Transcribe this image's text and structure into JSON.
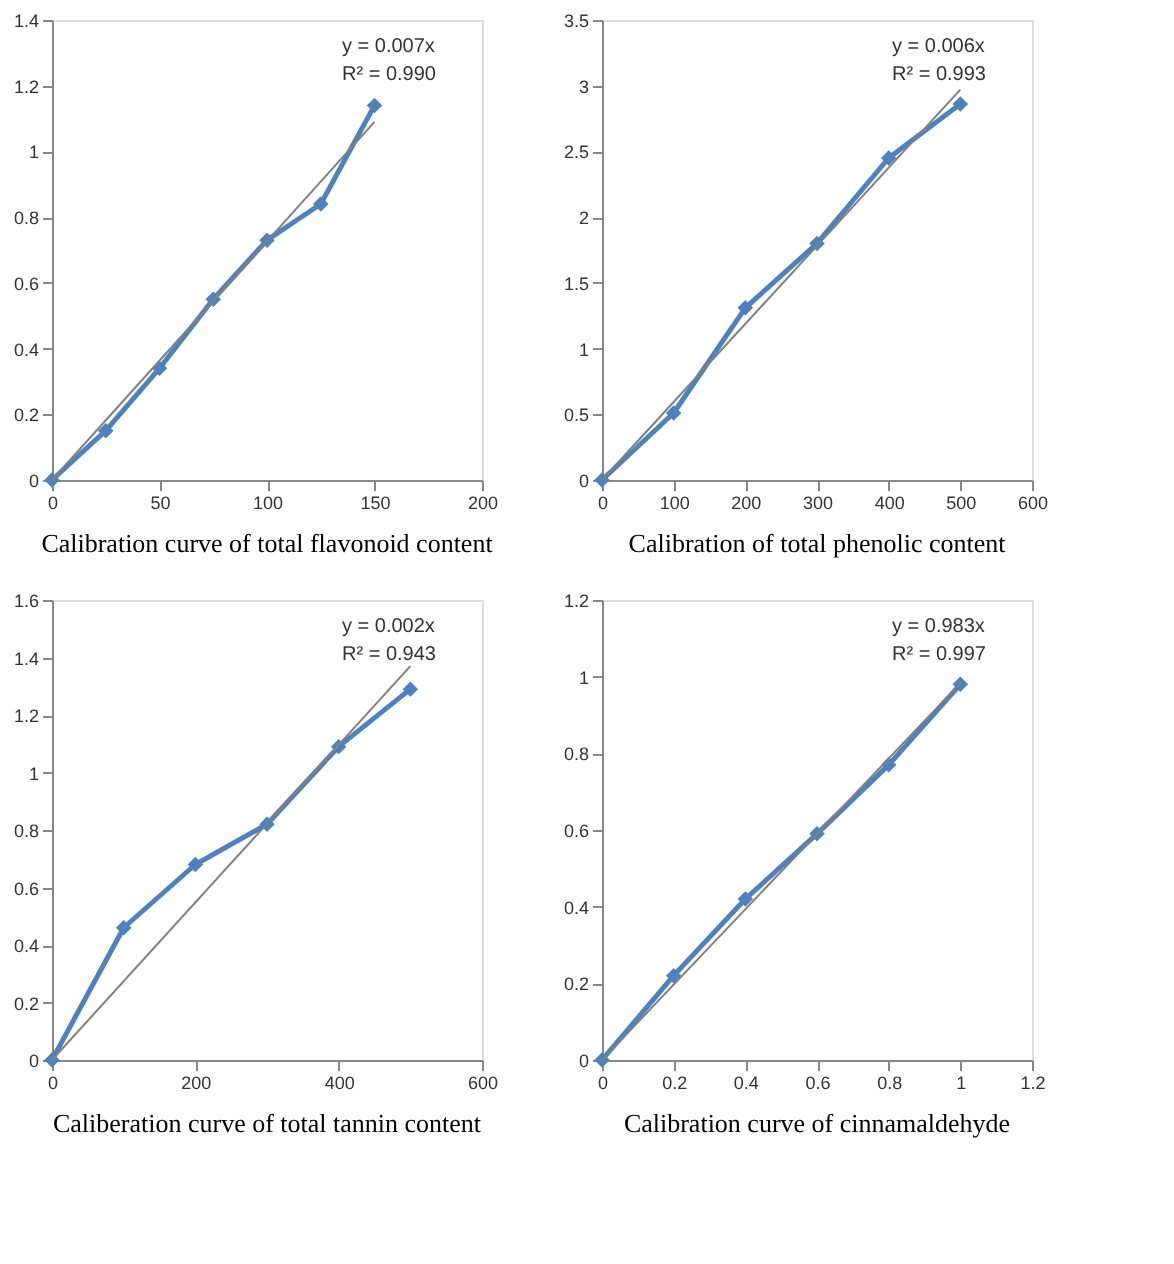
{
  "chart_data": [
    {
      "type": "line",
      "title": "Calibration curve of total flavonoid content",
      "annotations": [
        "y = 0.007x",
        "R² = 0.990"
      ],
      "marker": "diamond",
      "xlim": [
        0,
        200
      ],
      "xticks": [
        0,
        50,
        100,
        150,
        200
      ],
      "ylim": [
        0,
        1.4
      ],
      "yticks": [
        0,
        0.2,
        0.4,
        0.6,
        0.8,
        1,
        1.2,
        1.4
      ],
      "series": [
        {
          "color": "#4f81bd",
          "x": [
            0,
            25,
            50,
            75,
            100,
            125,
            150
          ],
          "values": [
            0,
            0.15,
            0.34,
            0.55,
            0.73,
            0.84,
            1.14
          ]
        },
        {
          "type": "line",
          "marker": "none",
          "color": "#808080",
          "x": [
            0,
            150
          ],
          "values": [
            0,
            1.09
          ]
        }
      ]
    },
    {
      "type": "line",
      "title": "Calibration of total phenolic content",
      "annotations": [
        "y = 0.006x",
        "R² = 0.993"
      ],
      "marker": "diamond",
      "xlim": [
        0,
        600
      ],
      "xticks": [
        0,
        100,
        200,
        300,
        400,
        500,
        600
      ],
      "ylim": [
        0,
        3.5
      ],
      "yticks": [
        0,
        0.5,
        1,
        1.5,
        2,
        2.5,
        3,
        3.5
      ],
      "series": [
        {
          "color": "#4f81bd",
          "x": [
            0,
            100,
            200,
            300,
            400,
            500
          ],
          "values": [
            0,
            0.51,
            1.31,
            1.8,
            2.45,
            2.86
          ]
        },
        {
          "type": "line",
          "marker": "none",
          "color": "#808080",
          "x": [
            0,
            500
          ],
          "values": [
            0,
            2.97
          ]
        }
      ]
    },
    {
      "type": "line",
      "title": "Caliberation curve of  total tannin content",
      "annotations": [
        "y = 0.002x",
        "R² = 0.943"
      ],
      "marker": "diamond",
      "xlim": [
        0,
        600
      ],
      "xticks": [
        0,
        200,
        400,
        600
      ],
      "ylim": [
        0,
        1.6
      ],
      "yticks": [
        0,
        0.2,
        0.4,
        0.6,
        0.8,
        1,
        1.2,
        1.4,
        1.6
      ],
      "series": [
        {
          "color": "#4f81bd",
          "x": [
            0,
            100,
            200,
            300,
            400,
            500
          ],
          "values": [
            0,
            0.46,
            0.68,
            0.82,
            1.09,
            1.29
          ]
        },
        {
          "type": "line",
          "marker": "none",
          "color": "#808080",
          "x": [
            0,
            500
          ],
          "values": [
            0,
            1.37
          ]
        }
      ]
    },
    {
      "type": "line",
      "title": "Calibration curve of cinnamaldehyde",
      "annotations": [
        "y = 0.983x",
        "R² = 0.997"
      ],
      "marker": "diamond",
      "xlim": [
        0,
        1.2
      ],
      "xticks": [
        0,
        0.2,
        0.4,
        0.6,
        0.8,
        1,
        1.2
      ],
      "ylim": [
        0,
        1.2
      ],
      "yticks": [
        0,
        0.2,
        0.4,
        0.6,
        0.8,
        1,
        1.2
      ],
      "series": [
        {
          "color": "#4f81bd",
          "x": [
            0,
            0.2,
            0.4,
            0.6,
            0.8,
            1
          ],
          "values": [
            0,
            0.22,
            0.42,
            0.59,
            0.77,
            0.98
          ]
        },
        {
          "type": "line",
          "marker": "none",
          "color": "#808080",
          "x": [
            0,
            1
          ],
          "values": [
            0,
            0.983
          ]
        }
      ]
    }
  ]
}
